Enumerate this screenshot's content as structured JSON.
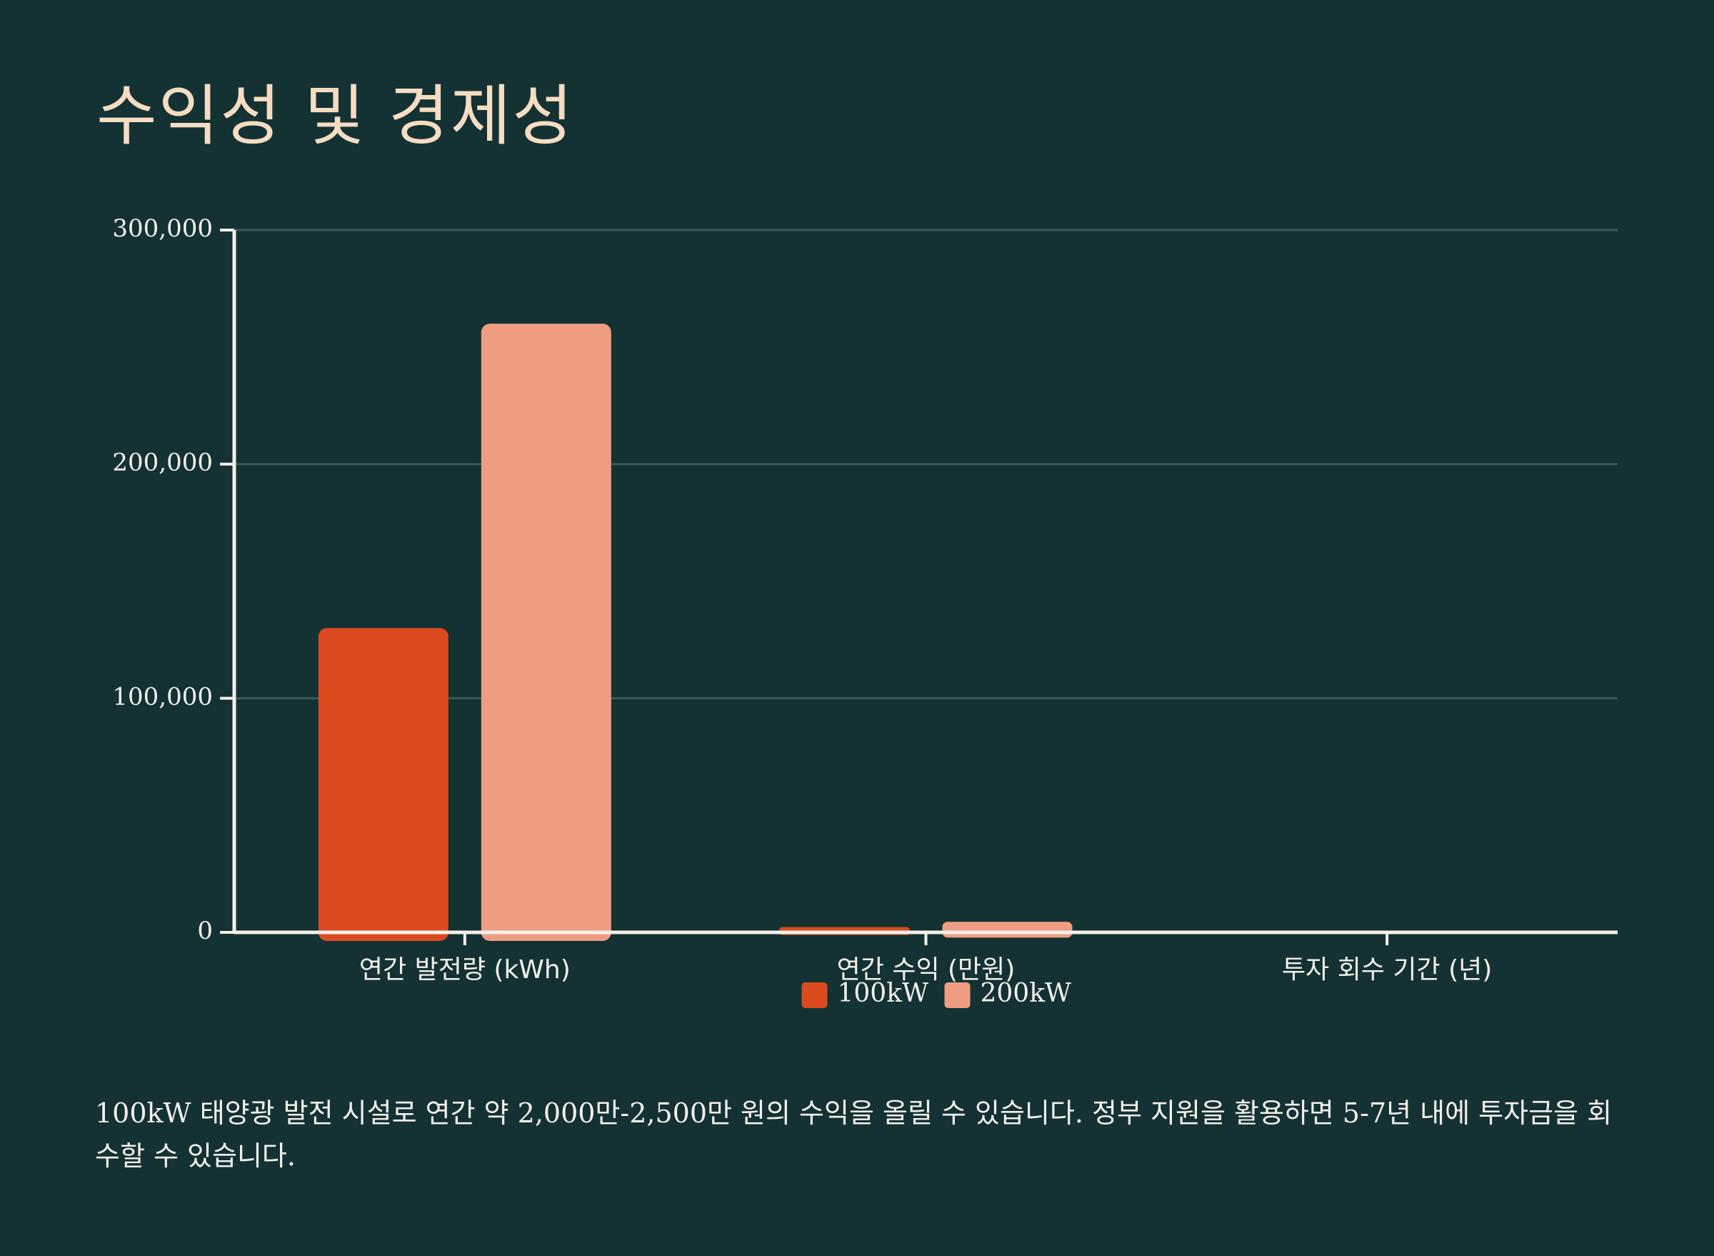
{
  "page": {
    "title": "수익성 및 경제성",
    "caption": "100kW 태양광 발전 시설로 연간 약 2,000만-2,500만 원의 수익을 올릴 수 있습니다. 정부 지원을 활용하면 5-7년 내에 투자금을 회수할 수 있습니다."
  },
  "colors": {
    "background": "#143233",
    "title": "#f6dcc2",
    "text": "#f4f0ea",
    "axis": "#f4f0ea",
    "grid": "#3b5a58"
  },
  "chart_data": {
    "type": "bar",
    "categories": [
      "연간 발전량 (kWh)",
      "연간 수익 (만원)",
      "투자 회수 기간 (년)"
    ],
    "series": [
      {
        "name": "100kW",
        "color": "#db4b1f",
        "values": [
          130000,
          2250,
          6
        ]
      },
      {
        "name": "200kW",
        "color": "#ef9d82",
        "values": [
          260000,
          4500,
          6
        ]
      }
    ],
    "ylim": [
      0,
      300000
    ],
    "yticks": [
      0,
      100000,
      200000,
      300000
    ],
    "ytick_labels": [
      "0",
      "100,000",
      "200,000",
      "300,000"
    ],
    "grid": true,
    "legend": "bottom-center"
  }
}
